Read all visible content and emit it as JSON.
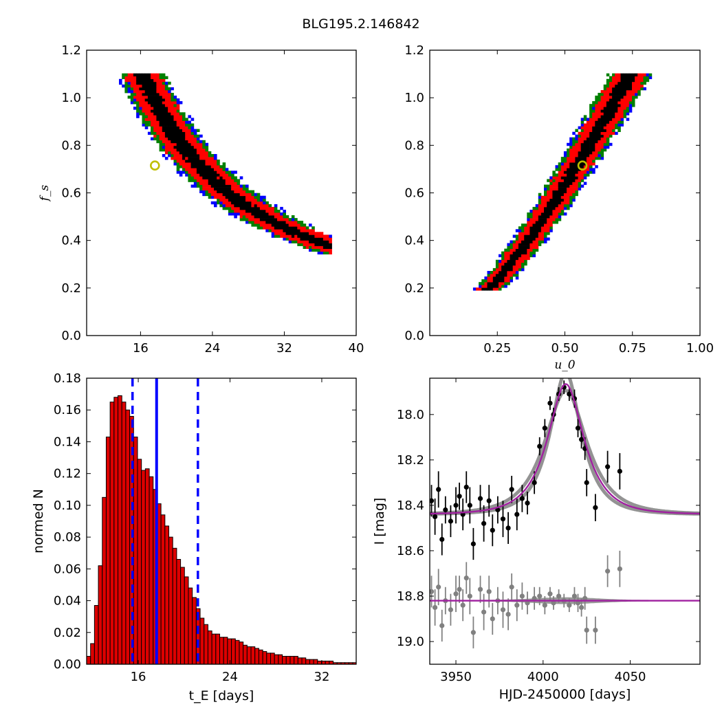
{
  "title": "BLG195.2.146842",
  "colors": {
    "sigma3": "#0000ff",
    "sigma2": "#008000",
    "sigma1": "#ff0000",
    "core": "#000000",
    "best_marker": "#bfbf00",
    "hist_bar": "#dd0000",
    "hist_lines": "#0000ff",
    "model": "#a020a0",
    "model_band": "#808080",
    "data_primary": "#000000",
    "data_residual": "#808080"
  },
  "chart_data": [
    {
      "id": "fs_vs_tE",
      "type": "heatmap",
      "xlabel": "",
      "ylabel": "f_s",
      "xlim": [
        10,
        40
      ],
      "ylim": [
        0.0,
        1.2
      ],
      "xticks": [
        "16",
        "24",
        "32",
        "40"
      ],
      "yticks": [
        "0.0",
        "0.2",
        "0.4",
        "0.6",
        "0.8",
        "1.0",
        "1.2"
      ],
      "relation": "t_E ≈ 17.2 / f_s^0.77 (curved confidence band)",
      "band_f_range": [
        0.19,
        1.1
      ],
      "best_fit": {
        "x": 17.6,
        "y": 0.715
      }
    },
    {
      "id": "fs_vs_u0",
      "type": "heatmap",
      "xlabel": "u_0",
      "ylabel": "",
      "xlim": [
        0.0,
        1.0
      ],
      "ylim": [
        0.0,
        1.2
      ],
      "xticks": [
        "0.25",
        "0.50",
        "0.75",
        "1.00"
      ],
      "yticks": [
        "0.0",
        "0.2",
        "0.4",
        "0.6",
        "0.8",
        "1.0",
        "1.2"
      ],
      "relation": "u_0 rises from ~0.21 at f_s=0.19 to ~0.74 at f_s=1.1",
      "band_f_range": [
        0.19,
        1.1
      ],
      "best_fit": {
        "x": 0.565,
        "y": 0.715
      }
    },
    {
      "id": "tE_histogram",
      "type": "bar",
      "xlabel": "t_E [days]",
      "ylabel": "normed N",
      "xlim": [
        11.5,
        35
      ],
      "ylim": [
        0.0,
        0.18
      ],
      "xticks": [
        "16",
        "24",
        "32"
      ],
      "yticks": [
        "0.00",
        "0.02",
        "0.04",
        "0.06",
        "0.08",
        "0.10",
        "0.12",
        "0.14",
        "0.16",
        "0.18"
      ],
      "bin_start": 11.5,
      "bin_width": 0.3412,
      "values": [
        0.005,
        0.013,
        0.037,
        0.062,
        0.105,
        0.143,
        0.165,
        0.168,
        0.169,
        0.165,
        0.16,
        0.156,
        0.143,
        0.129,
        0.122,
        0.123,
        0.118,
        0.11,
        0.101,
        0.094,
        0.087,
        0.08,
        0.073,
        0.066,
        0.061,
        0.055,
        0.048,
        0.042,
        0.035,
        0.029,
        0.025,
        0.021,
        0.019,
        0.019,
        0.017,
        0.017,
        0.016,
        0.016,
        0.015,
        0.014,
        0.012,
        0.011,
        0.011,
        0.01,
        0.009,
        0.008,
        0.007,
        0.007,
        0.006,
        0.006,
        0.005,
        0.005,
        0.005,
        0.005,
        0.004,
        0.004,
        0.003,
        0.003,
        0.003,
        0.002,
        0.002,
        0.002,
        0.002,
        0.001,
        0.001,
        0.001,
        0.001,
        0.001,
        0.001
      ],
      "median": 17.6,
      "bounds": [
        15.5,
        21.2
      ]
    },
    {
      "id": "lightcurve",
      "type": "scatter",
      "xlabel": "HJD-2450000 [days]",
      "ylabel": "I [mag]",
      "xlim": [
        3935,
        4090
      ],
      "ylim": [
        19.1,
        17.84
      ],
      "xticks": [
        "3950",
        "4000",
        "4050"
      ],
      "yticks": [
        "18.0",
        "18.2",
        "18.4",
        "18.6",
        "18.8",
        "19.0"
      ],
      "model": {
        "t0": 4013,
        "tE": 17.6,
        "u0": 0.565,
        "fs": 0.715,
        "baseline": 18.44
      },
      "residual_baseline": 18.82,
      "data": [
        {
          "t": 3936,
          "mag": 18.38,
          "err": 0.07
        },
        {
          "t": 3938,
          "mag": 18.45,
          "err": 0.08
        },
        {
          "t": 3940,
          "mag": 18.33,
          "err": 0.08
        },
        {
          "t": 3942,
          "mag": 18.55,
          "err": 0.07
        },
        {
          "t": 3944,
          "mag": 18.42,
          "err": 0.06
        },
        {
          "t": 3947,
          "mag": 18.47,
          "err": 0.07
        },
        {
          "t": 3950,
          "mag": 18.4,
          "err": 0.08
        },
        {
          "t": 3952,
          "mag": 18.36,
          "err": 0.06
        },
        {
          "t": 3954,
          "mag": 18.44,
          "err": 0.07
        },
        {
          "t": 3956,
          "mag": 18.32,
          "err": 0.07
        },
        {
          "t": 3958,
          "mag": 18.4,
          "err": 0.08
        },
        {
          "t": 3960,
          "mag": 18.57,
          "err": 0.07
        },
        {
          "t": 3964,
          "mag": 18.37,
          "err": 0.06
        },
        {
          "t": 3966,
          "mag": 18.48,
          "err": 0.08
        },
        {
          "t": 3969,
          "mag": 18.38,
          "err": 0.07
        },
        {
          "t": 3971,
          "mag": 18.51,
          "err": 0.07
        },
        {
          "t": 3974,
          "mag": 18.42,
          "err": 0.06
        },
        {
          "t": 3977,
          "mag": 18.46,
          "err": 0.08
        },
        {
          "t": 3980,
          "mag": 18.5,
          "err": 0.07
        },
        {
          "t": 3982,
          "mag": 18.33,
          "err": 0.06
        },
        {
          "t": 3985,
          "mag": 18.44,
          "err": 0.07
        },
        {
          "t": 3988,
          "mag": 18.37,
          "err": 0.06
        },
        {
          "t": 3991,
          "mag": 18.39,
          "err": 0.05
        },
        {
          "t": 3995,
          "mag": 18.3,
          "err": 0.05
        },
        {
          "t": 3998,
          "mag": 18.14,
          "err": 0.04
        },
        {
          "t": 4001,
          "mag": 18.06,
          "err": 0.04
        },
        {
          "t": 4004,
          "mag": 17.95,
          "err": 0.03
        },
        {
          "t": 4006,
          "mag": 18.0,
          "err": 0.03
        },
        {
          "t": 4009,
          "mag": 17.91,
          "err": 0.03
        },
        {
          "t": 4012,
          "mag": 17.88,
          "err": 0.03
        },
        {
          "t": 4015,
          "mag": 17.91,
          "err": 0.03
        },
        {
          "t": 4018,
          "mag": 17.93,
          "err": 0.04
        },
        {
          "t": 4020,
          "mag": 18.06,
          "err": 0.04
        },
        {
          "t": 4022,
          "mag": 18.11,
          "err": 0.04
        },
        {
          "t": 4024,
          "mag": 18.15,
          "err": 0.05
        },
        {
          "t": 4025,
          "mag": 18.3,
          "err": 0.06
        },
        {
          "t": 4030,
          "mag": 18.41,
          "err": 0.06
        },
        {
          "t": 4037,
          "mag": 18.23,
          "err": 0.07
        },
        {
          "t": 4044,
          "mag": 18.25,
          "err": 0.08
        }
      ],
      "residuals": [
        {
          "t": 3936,
          "mag": 18.78,
          "err": 0.07
        },
        {
          "t": 3938,
          "mag": 18.85,
          "err": 0.08
        },
        {
          "t": 3940,
          "mag": 18.76,
          "err": 0.08
        },
        {
          "t": 3942,
          "mag": 18.93,
          "err": 0.07
        },
        {
          "t": 3944,
          "mag": 18.82,
          "err": 0.06
        },
        {
          "t": 3947,
          "mag": 18.86,
          "err": 0.07
        },
        {
          "t": 3950,
          "mag": 18.79,
          "err": 0.08
        },
        {
          "t": 3952,
          "mag": 18.77,
          "err": 0.06
        },
        {
          "t": 3954,
          "mag": 18.84,
          "err": 0.07
        },
        {
          "t": 3956,
          "mag": 18.72,
          "err": 0.07
        },
        {
          "t": 3958,
          "mag": 18.8,
          "err": 0.08
        },
        {
          "t": 3960,
          "mag": 18.96,
          "err": 0.07
        },
        {
          "t": 3964,
          "mag": 18.77,
          "err": 0.06
        },
        {
          "t": 3966,
          "mag": 18.87,
          "err": 0.08
        },
        {
          "t": 3969,
          "mag": 18.78,
          "err": 0.07
        },
        {
          "t": 3971,
          "mag": 18.9,
          "err": 0.07
        },
        {
          "t": 3974,
          "mag": 18.82,
          "err": 0.06
        },
        {
          "t": 3977,
          "mag": 18.86,
          "err": 0.08
        },
        {
          "t": 3980,
          "mag": 18.88,
          "err": 0.07
        },
        {
          "t": 3982,
          "mag": 18.76,
          "err": 0.06
        },
        {
          "t": 3985,
          "mag": 18.84,
          "err": 0.07
        },
        {
          "t": 3988,
          "mag": 18.8,
          "err": 0.06
        },
        {
          "t": 3991,
          "mag": 18.83,
          "err": 0.05
        },
        {
          "t": 3995,
          "mag": 18.81,
          "err": 0.05
        },
        {
          "t": 3998,
          "mag": 18.8,
          "err": 0.04
        },
        {
          "t": 4001,
          "mag": 18.84,
          "err": 0.04
        },
        {
          "t": 4004,
          "mag": 18.79,
          "err": 0.03
        },
        {
          "t": 4006,
          "mag": 18.83,
          "err": 0.03
        },
        {
          "t": 4009,
          "mag": 18.8,
          "err": 0.03
        },
        {
          "t": 4012,
          "mag": 18.82,
          "err": 0.03
        },
        {
          "t": 4015,
          "mag": 18.84,
          "err": 0.03
        },
        {
          "t": 4018,
          "mag": 18.8,
          "err": 0.04
        },
        {
          "t": 4020,
          "mag": 18.83,
          "err": 0.04
        },
        {
          "t": 4022,
          "mag": 18.85,
          "err": 0.04
        },
        {
          "t": 4024,
          "mag": 18.81,
          "err": 0.05
        },
        {
          "t": 4025,
          "mag": 18.95,
          "err": 0.06
        },
        {
          "t": 4030,
          "mag": 18.95,
          "err": 0.06
        },
        {
          "t": 4037,
          "mag": 18.69,
          "err": 0.07
        },
        {
          "t": 4044,
          "mag": 18.68,
          "err": 0.08
        }
      ]
    }
  ]
}
